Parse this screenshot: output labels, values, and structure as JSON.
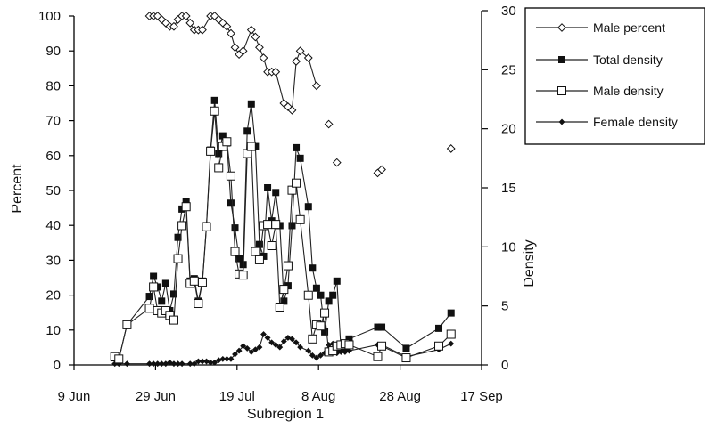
{
  "chart_data": {
    "type": "line",
    "title": "",
    "xlabel": "Subregion 1",
    "ylabel_left": "Percent",
    "ylabel_right": "Density",
    "x_ticks": [
      "9 Jun",
      "29 Jun",
      "19 Jul",
      "8 Aug",
      "28 Aug",
      "17 Sep"
    ],
    "x_tick_days": [
      0,
      20,
      40,
      60,
      80,
      100
    ],
    "x_domain": [
      0,
      100
    ],
    "y_left_ticks": [
      "0",
      "10",
      "20",
      "30",
      "40",
      "50",
      "60",
      "70",
      "80",
      "90",
      "100"
    ],
    "y_left_range": [
      0,
      100
    ],
    "y_right_ticks": [
      "0",
      "5",
      "10",
      "15",
      "20",
      "25",
      "30"
    ],
    "y_right_range": [
      0,
      30
    ],
    "grid": false,
    "legend_position": "top-right",
    "series": [
      {
        "name": "Male percent",
        "axis": "left",
        "marker": "open-diamond",
        "segments": [
          [
            [
              18.5,
              100
            ],
            [
              19.5,
              100
            ],
            [
              20.5,
              100
            ],
            [
              21.5,
              99
            ],
            [
              22.5,
              98
            ],
            [
              23.5,
              97
            ],
            [
              24.5,
              97
            ],
            [
              25.5,
              99
            ],
            [
              26.5,
              100
            ],
            [
              27.5,
              100
            ],
            [
              28.5,
              98
            ],
            [
              29.5,
              96
            ],
            [
              30.5,
              96
            ],
            [
              31.5,
              96
            ],
            [
              33.5,
              100
            ],
            [
              34.5,
              100
            ],
            [
              35.5,
              99
            ],
            [
              36.5,
              98
            ],
            [
              37.5,
              97
            ],
            [
              38.5,
              95
            ],
            [
              39.5,
              91
            ],
            [
              40.5,
              89
            ],
            [
              41.5,
              90
            ],
            [
              43.5,
              96
            ],
            [
              44.5,
              94
            ],
            [
              45.5,
              91
            ],
            [
              46.5,
              88
            ],
            [
              47.5,
              84
            ],
            [
              48.5,
              84
            ],
            [
              49.5,
              84
            ],
            [
              51.5,
              75
            ],
            [
              52.5,
              74
            ],
            [
              53.5,
              73
            ],
            [
              54.5,
              87
            ],
            [
              55.5,
              90
            ],
            [
              57.5,
              88
            ],
            [
              59.5,
              80
            ]
          ],
          [
            [
              62.5,
              69
            ]
          ],
          [
            [
              64.5,
              58
            ]
          ],
          [
            [
              74.5,
              55
            ]
          ],
          [
            [
              75.5,
              56
            ]
          ],
          [
            [
              92.5,
              62
            ]
          ]
        ]
      },
      {
        "name": "Total density",
        "axis": "right",
        "marker": "filled-square",
        "segments": [
          [
            [
              10,
              0.6
            ],
            [
              11,
              0.5
            ],
            [
              13,
              3.4
            ],
            [
              18.5,
              5.8
            ],
            [
              19.5,
              7.5
            ],
            [
              20.5,
              6.6
            ],
            [
              21.5,
              5.4
            ],
            [
              22.5,
              6.9
            ],
            [
              23.5,
              4.6
            ],
            [
              24.5,
              6.0
            ],
            [
              25.5,
              10.8
            ],
            [
              26.5,
              13.2
            ],
            [
              27.5,
              13.8
            ],
            [
              28.5,
              7.1
            ],
            [
              29.5,
              7.3
            ],
            [
              30.5,
              5.4
            ],
            [
              31.5,
              7.1
            ],
            [
              32.5,
              11.8
            ],
            [
              33.5,
              18.2
            ],
            [
              34.5,
              22.4
            ],
            [
              35.5,
              17.9
            ],
            [
              36.5,
              19.4
            ],
            [
              37.5,
              18.8
            ],
            [
              38.5,
              13.7
            ],
            [
              39.5,
              11.6
            ],
            [
              40.5,
              9.0
            ],
            [
              41.5,
              8.5
            ],
            [
              42.5,
              19.8
            ],
            [
              43.5,
              22.1
            ],
            [
              44.5,
              18.5
            ],
            [
              45.5,
              10.2
            ],
            [
              46.5,
              9.2
            ],
            [
              47.5,
              15.0
            ],
            [
              48.5,
              12.2
            ],
            [
              49.5,
              14.6
            ],
            [
              50.5,
              11.8
            ],
            [
              51.5,
              5.4
            ],
            [
              52.5,
              6.7
            ],
            [
              53.5,
              11.8
            ],
            [
              54.5,
              18.4
            ],
            [
              55.5,
              17.5
            ],
            [
              57.5,
              13.4
            ],
            [
              58.5,
              8.2
            ],
            [
              59.5,
              6.5
            ],
            [
              60.5,
              5.9
            ],
            [
              61.5,
              2.8
            ],
            [
              62.5,
              5.4
            ],
            [
              63.5,
              5.9
            ],
            [
              64.5,
              7.1
            ],
            [
              65.5,
              1.3
            ],
            [
              66.5,
              1.4
            ],
            [
              67.5,
              2.2
            ],
            [
              74.5,
              3.2
            ],
            [
              75.5,
              3.2
            ],
            [
              81.5,
              1.4
            ],
            [
              89.5,
              3.1
            ],
            [
              92.5,
              4.4
            ]
          ]
        ]
      },
      {
        "name": "Male density",
        "axis": "right",
        "marker": "open-square",
        "segments": [
          [
            [
              10,
              0.7
            ],
            [
              11,
              0.5
            ],
            [
              13,
              3.4
            ],
            [
              18.5,
              4.8
            ],
            [
              19.5,
              6.6
            ],
            [
              20.5,
              4.6
            ],
            [
              21.5,
              4.4
            ],
            [
              22.5,
              4.6
            ],
            [
              23.5,
              4.2
            ],
            [
              24.5,
              3.8
            ],
            [
              25.5,
              9.0
            ],
            [
              26.5,
              11.8
            ],
            [
              27.5,
              13.4
            ],
            [
              28.5,
              6.9
            ],
            [
              29.5,
              7.1
            ],
            [
              30.5,
              5.2
            ],
            [
              31.5,
              7.0
            ],
            [
              32.5,
              11.7
            ],
            [
              33.5,
              18.1
            ],
            [
              34.5,
              21.5
            ],
            [
              35.5,
              16.7
            ],
            [
              36.5,
              18.5
            ],
            [
              37.5,
              18.9
            ],
            [
              38.5,
              16.0
            ],
            [
              39.5,
              9.6
            ],
            [
              40.5,
              7.7
            ],
            [
              41.5,
              7.6
            ],
            [
              42.5,
              17.9
            ],
            [
              43.5,
              18.5
            ],
            [
              44.5,
              9.6
            ],
            [
              45.5,
              8.9
            ],
            [
              46.5,
              11.8
            ],
            [
              47.5,
              11.9
            ],
            [
              48.5,
              10.1
            ],
            [
              49.5,
              11.9
            ],
            [
              50.5,
              4.9
            ],
            [
              51.5,
              6.4
            ],
            [
              52.5,
              8.4
            ],
            [
              53.5,
              14.8
            ],
            [
              54.5,
              15.4
            ],
            [
              55.5,
              12.3
            ],
            [
              57.5,
              5.9
            ],
            [
              58.5,
              2.2
            ],
            [
              59.5,
              3.4
            ],
            [
              60.5,
              3.3
            ],
            [
              61.5,
              4.4
            ],
            [
              62.5,
              1.1
            ],
            [
              63.5,
              1.2
            ],
            [
              64.5,
              1.6
            ],
            [
              65.5,
              1.7
            ],
            [
              66.5,
              1.8
            ],
            [
              67.5,
              1.7
            ],
            [
              74.5,
              0.7
            ],
            [
              75.5,
              1.6
            ],
            [
              81.5,
              0.6
            ],
            [
              89.5,
              1.6
            ],
            [
              92.5,
              2.6
            ]
          ]
        ]
      },
      {
        "name": "Female density",
        "axis": "right",
        "marker": "filled-diamond",
        "segments": [
          [
            [
              10,
              0.1
            ],
            [
              11,
              0.1
            ],
            [
              13,
              0.1
            ],
            [
              18.5,
              0.1
            ],
            [
              19.5,
              0.1
            ],
            [
              20.5,
              0.1
            ],
            [
              21.5,
              0.1
            ],
            [
              22.5,
              0.1
            ],
            [
              23.5,
              0.2
            ],
            [
              24.5,
              0.1
            ],
            [
              25.5,
              0.1
            ],
            [
              26.5,
              0.1
            ],
            [
              28.5,
              0.1
            ],
            [
              29.5,
              0.1
            ],
            [
              30.5,
              0.3
            ],
            [
              31.5,
              0.3
            ],
            [
              32.5,
              0.3
            ],
            [
              33.5,
              0.2
            ],
            [
              34.5,
              0.2
            ],
            [
              35.5,
              0.4
            ],
            [
              36.5,
              0.5
            ],
            [
              37.5,
              0.5
            ],
            [
              38.5,
              0.5
            ],
            [
              39.5,
              0.9
            ],
            [
              40.5,
              1.2
            ],
            [
              41.5,
              1.6
            ],
            [
              42.5,
              1.4
            ],
            [
              43.5,
              1.1
            ],
            [
              44.5,
              1.3
            ],
            [
              45.5,
              1.5
            ],
            [
              46.5,
              2.6
            ],
            [
              47.5,
              2.3
            ],
            [
              48.5,
              1.9
            ],
            [
              49.5,
              1.7
            ],
            [
              50.5,
              1.5
            ],
            [
              51.5,
              2.0
            ],
            [
              52.5,
              2.3
            ],
            [
              53.5,
              2.2
            ],
            [
              54.5,
              1.9
            ],
            [
              55.5,
              1.5
            ],
            [
              57.5,
              1.2
            ],
            [
              58.5,
              0.8
            ],
            [
              59.5,
              0.6
            ],
            [
              60.5,
              0.8
            ],
            [
              61.5,
              1.0
            ],
            [
              62.5,
              1.7
            ],
            [
              63.5,
              1.8
            ],
            [
              64.5,
              1.0
            ],
            [
              65.5,
              1.1
            ],
            [
              66.5,
              1.1
            ],
            [
              67.5,
              1.2
            ],
            [
              74.5,
              1.7
            ],
            [
              75.5,
              1.7
            ],
            [
              81.5,
              0.7
            ],
            [
              89.5,
              1.3
            ],
            [
              92.5,
              1.8
            ]
          ]
        ]
      }
    ]
  }
}
